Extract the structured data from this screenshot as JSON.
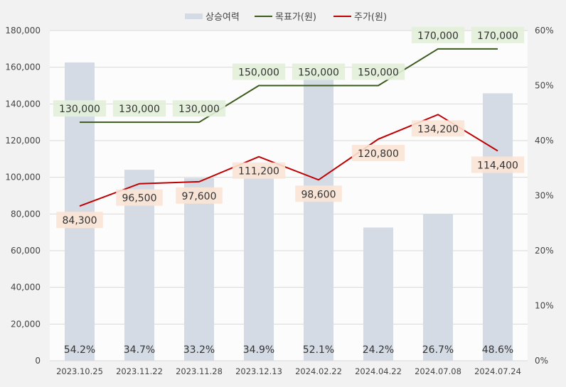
{
  "chart_data": {
    "type": "bar+line",
    "categories": [
      "2023.10.25",
      "2023.11.22",
      "2023.11.28",
      "2023.12.13",
      "2024.02.22",
      "2024.04.22",
      "2024.07.08",
      "2024.07.24"
    ],
    "series": [
      {
        "name": "상승여력",
        "type": "bar",
        "axis": "right",
        "values": [
          54.2,
          34.7,
          33.2,
          34.9,
          52.1,
          24.2,
          26.7,
          48.6
        ],
        "labels": [
          "54.2%",
          "34.7%",
          "33.2%",
          "34.9%",
          "52.1%",
          "24.2%",
          "26.7%",
          "48.6%"
        ],
        "color": "#d5dbe5"
      },
      {
        "name": "목표가(원)",
        "type": "line",
        "axis": "left",
        "values": [
          130000,
          130000,
          130000,
          150000,
          150000,
          150000,
          170000,
          170000
        ],
        "labels": [
          "130,000",
          "130,000",
          "130,000",
          "150,000",
          "150,000",
          "150,000",
          "170,000",
          "170,000"
        ],
        "color": "#3a5a1c",
        "label_bg": "#e2efd9"
      },
      {
        "name": "주가(원)",
        "type": "line",
        "axis": "left",
        "values": [
          84300,
          96500,
          97600,
          111200,
          98600,
          120800,
          134200,
          114400
        ],
        "labels": [
          "84,300",
          "96,500",
          "97,600",
          "111,200",
          "98,600",
          "120,800",
          "134,200",
          "114,400"
        ],
        "color": "#c00000",
        "label_bg": "#fbe4d5"
      }
    ],
    "y_left": {
      "range": [
        0,
        180000
      ],
      "ticks": [
        "0",
        "20,000",
        "40,000",
        "60,000",
        "80,000",
        "100,000",
        "120,000",
        "140,000",
        "160,000",
        "180,000"
      ]
    },
    "y_right": {
      "range": [
        0,
        60
      ],
      "ticks": [
        "0%",
        "10%",
        "20%",
        "30%",
        "40%",
        "50%",
        "60%"
      ]
    },
    "grid": true,
    "legend": "top"
  }
}
